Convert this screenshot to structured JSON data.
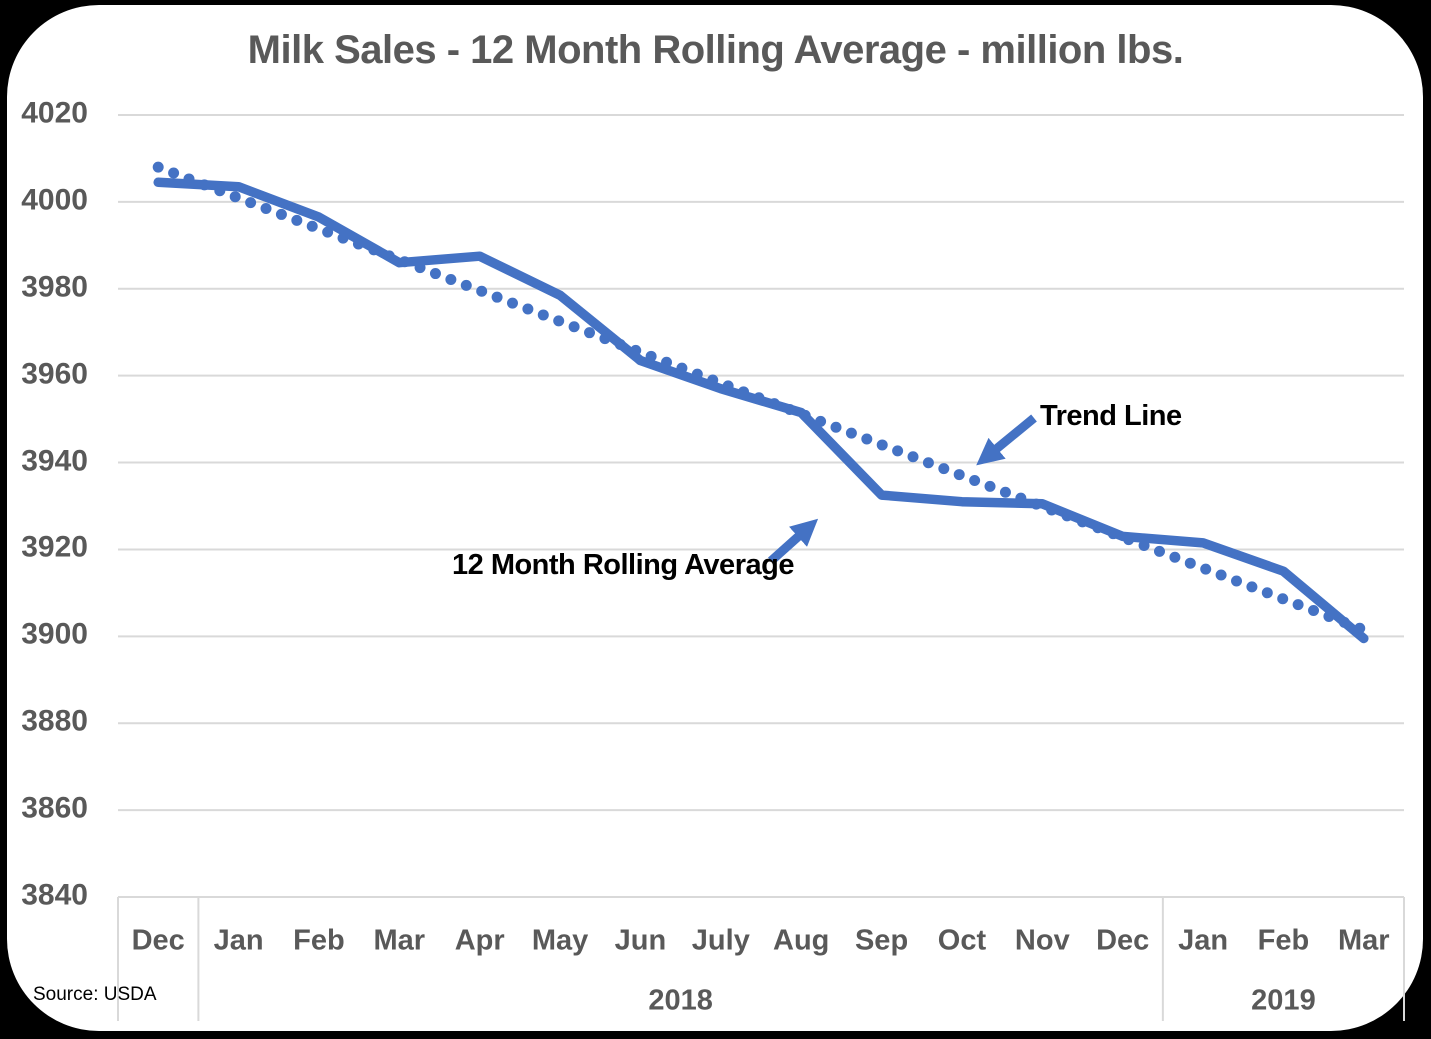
{
  "title": "Milk Sales - 12 Month Rolling Average - million lbs.",
  "source": "Source: USDA",
  "annotations": {
    "trend_line_label": "Trend Line",
    "rolling_avg_label": "12 Month Rolling Average"
  },
  "colors": {
    "line_blue": "#4472C4",
    "label_gray": "#595959",
    "gridline_gray": "#D9D9D9",
    "annotation_black": "#000000",
    "card_background": "#FFFFFF",
    "frame_background": "#000000"
  },
  "chart_data": {
    "type": "line",
    "title": "Milk Sales - 12 Month Rolling Average - million lbs.",
    "categories": [
      "Dec",
      "Jan",
      "Feb",
      "Mar",
      "Apr",
      "May",
      "Jun",
      "July",
      "Aug",
      "Sep",
      "Oct",
      "Nov",
      "Dec",
      "Jan",
      "Feb",
      "Mar"
    ],
    "year_groups": [
      {
        "label": "",
        "start": 0,
        "end": 0
      },
      {
        "label": "2018",
        "start": 1,
        "end": 12
      },
      {
        "label": "2019",
        "start": 13,
        "end": 15
      }
    ],
    "series": [
      {
        "name": "Trend Line",
        "style": "dotted",
        "values": [
          4008,
          4000.9,
          3993.8,
          3986.7,
          3979.6,
          3972.5,
          3965.4,
          3958.3,
          3951.2,
          3944.1,
          3937,
          3929.9,
          3922.8,
          3915.7,
          3908.6,
          3901.5
        ]
      },
      {
        "name": "12 Month Rolling Average",
        "style": "solid",
        "values": [
          4004.5,
          4003.5,
          3996.5,
          3986,
          3987.5,
          3978.5,
          3963.5,
          3957,
          3951.5,
          3932.5,
          3931,
          3930.5,
          3923,
          3921.5,
          3915,
          3899.5
        ]
      }
    ],
    "ylim": [
      3840,
      4020
    ],
    "ytick_step": 20,
    "yticks": [
      3840,
      3860,
      3880,
      3900,
      3920,
      3940,
      3960,
      3980,
      4000,
      4020
    ],
    "grid": true,
    "legend_position": "none"
  }
}
